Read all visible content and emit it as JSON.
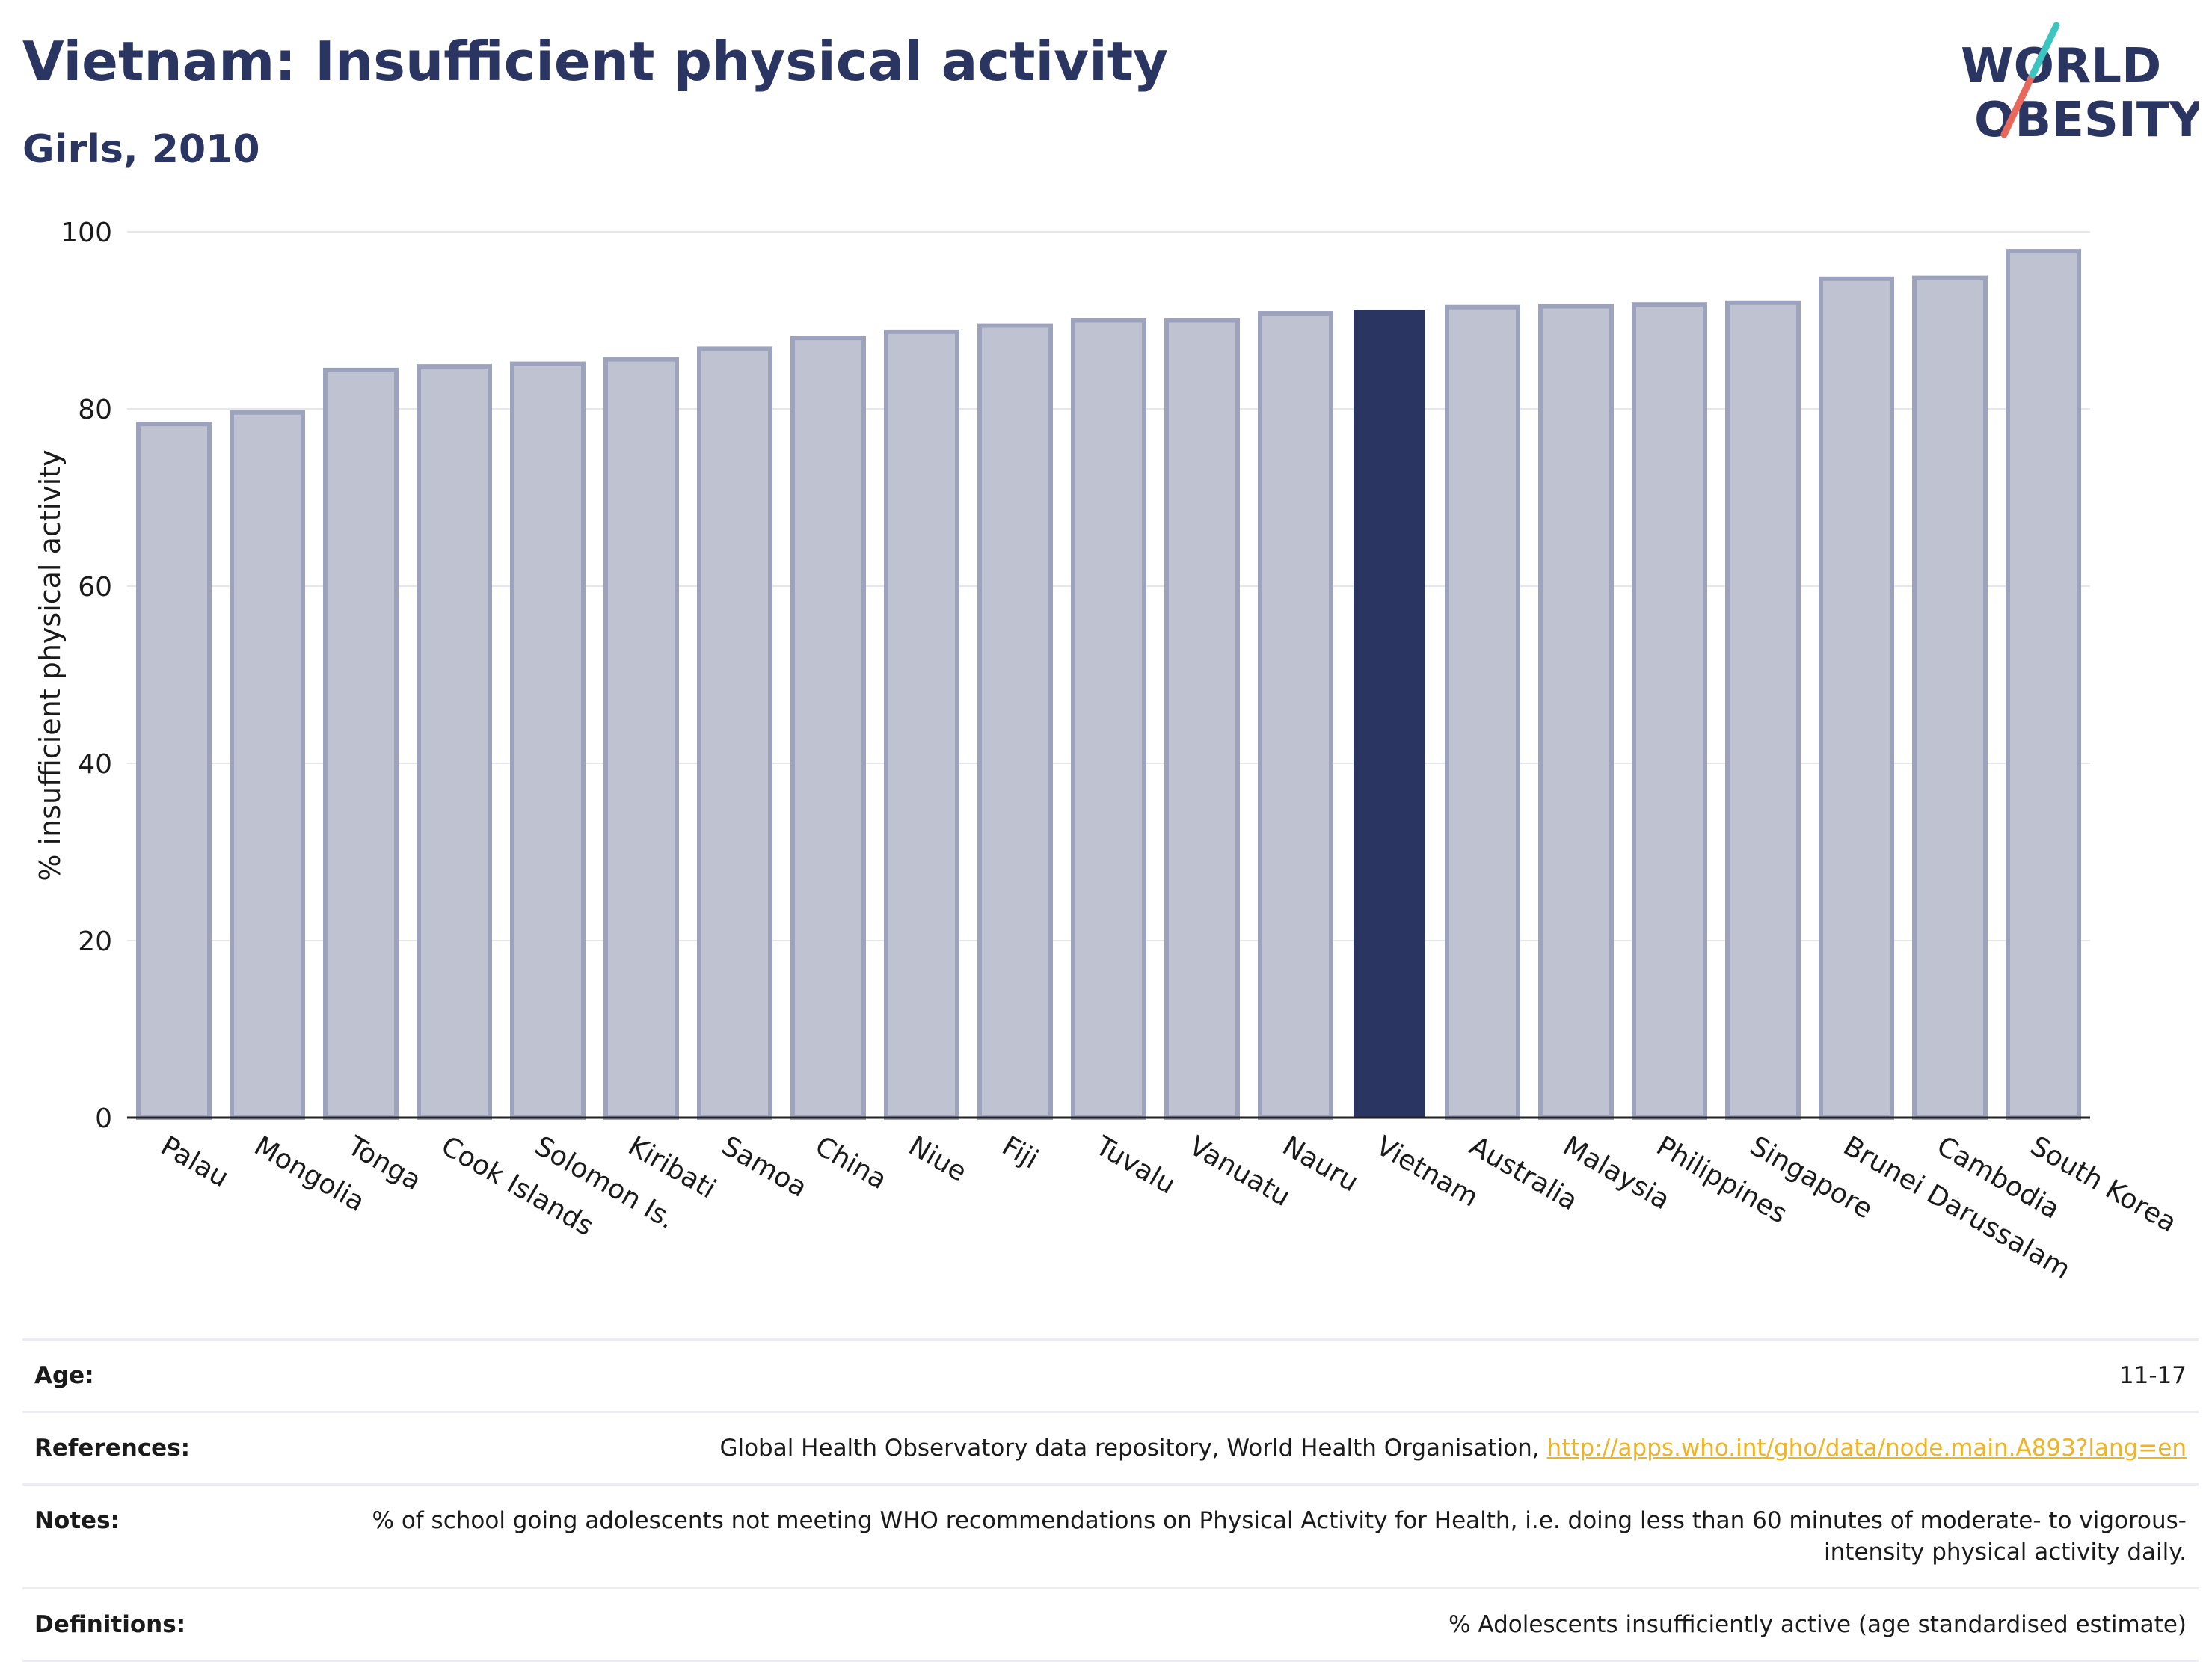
{
  "header": {
    "title": "Vietnam: Insufficient physical activity",
    "subtitle": "Girls, 2010"
  },
  "logo": {
    "line1": "WORLD",
    "line2": "OBESITY",
    "colors": {
      "text": "#2a3561",
      "slash_top": "#3cc4c1",
      "slash_bottom": "#e8695c"
    }
  },
  "chart_data": {
    "type": "bar",
    "ylabel": "% insufficient physical activity",
    "xlabel": "",
    "ylim": [
      0,
      100
    ],
    "yticks": [
      0,
      20,
      40,
      60,
      80,
      100
    ],
    "grid": true,
    "highlight": "Vietnam",
    "colors": {
      "bar": "#bfc2d0",
      "bar_edge": "#9ea3bd",
      "highlight": "#2a3561"
    },
    "categories": [
      "Palau",
      "Mongolia",
      "Tonga",
      "Cook Islands",
      "Solomon Is.",
      "Kiribati",
      "Samoa",
      "China",
      "Niue",
      "Fiji",
      "Tuvalu",
      "Vanuatu",
      "Nauru",
      "Vietnam",
      "Australia",
      "Malaysia",
      "Philippines",
      "Singapore",
      "Brunei Darussalam",
      "Cambodia",
      "South Korea"
    ],
    "values": [
      78.3,
      79.6,
      84.4,
      84.8,
      85.1,
      85.6,
      86.8,
      88.0,
      88.7,
      89.4,
      90.0,
      90.0,
      90.8,
      91.2,
      91.5,
      91.6,
      91.8,
      92.0,
      94.7,
      94.8,
      97.8
    ]
  },
  "info": [
    {
      "key": "Age:",
      "value": "11-17"
    },
    {
      "key": "References:",
      "value": "Global Health Observatory data repository, World Health Organisation, ",
      "link": "http://apps.who.int/gho/data/node.main.A893?lang=en"
    },
    {
      "key": "Notes:",
      "value": "% of school going adolescents not meeting WHO recommendations on Physical Activity for Health, i.e. doing less than 60 minutes of moderate- to vigorous-intensity physical activity daily."
    },
    {
      "key": "Definitions:",
      "value": "% Adolescents insufficiently active (age standardised estimate)"
    }
  ]
}
